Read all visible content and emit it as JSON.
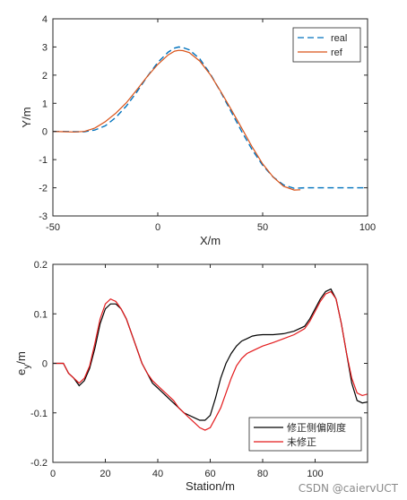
{
  "watermark": "CSDN @caiervUCT",
  "chart_data": [
    {
      "type": "line",
      "xlabel": "X/m",
      "ylabel": "Y/m",
      "xlim": [
        -50,
        100
      ],
      "ylim": [
        -3,
        4
      ],
      "xticks": [
        -50,
        0,
        50,
        100
      ],
      "yticks": [
        -3,
        -2,
        -1,
        0,
        1,
        2,
        3,
        4
      ],
      "grid": false,
      "legend_position": "top-right",
      "series": [
        {
          "name": "real",
          "color": "#0072BD",
          "dash": "dashed",
          "x": [
            -50,
            -45,
            -40,
            -35,
            -30,
            -25,
            -20,
            -15,
            -10,
            -5,
            0,
            5,
            8,
            10,
            12,
            15,
            20,
            25,
            30,
            35,
            40,
            45,
            50,
            55,
            60,
            65,
            70,
            75,
            80,
            90,
            100
          ],
          "y": [
            0.0,
            0.0,
            -0.01,
            -0.01,
            0.05,
            0.2,
            0.5,
            0.9,
            1.4,
            1.95,
            2.45,
            2.82,
            2.96,
            3.0,
            2.98,
            2.9,
            2.58,
            2.05,
            1.4,
            0.7,
            0.0,
            -0.65,
            -1.2,
            -1.62,
            -1.9,
            -2.02,
            -2.0,
            -2.0,
            -2.0,
            -2.0,
            -2.0
          ]
        },
        {
          "name": "ref",
          "color": "#D95319",
          "dash": "solid",
          "x": [
            -50,
            -45,
            -40,
            -35,
            -30,
            -25,
            -20,
            -15,
            -10,
            -5,
            0,
            5,
            8,
            10,
            12,
            15,
            20,
            25,
            30,
            35,
            40,
            45,
            50,
            55,
            60,
            65,
            68
          ],
          "y": [
            0.0,
            -0.01,
            -0.02,
            0.0,
            0.12,
            0.35,
            0.65,
            1.02,
            1.48,
            1.95,
            2.38,
            2.72,
            2.85,
            2.88,
            2.87,
            2.8,
            2.5,
            2.02,
            1.42,
            0.78,
            0.12,
            -0.55,
            -1.15,
            -1.62,
            -1.95,
            -2.08,
            -2.07
          ]
        }
      ]
    },
    {
      "type": "line",
      "xlabel": "Station/m",
      "ylabel": "e_y/m",
      "ylabel_main": "e",
      "ylabel_sub": "y",
      "ylabel_rest": "/m",
      "xlim": [
        0,
        120
      ],
      "ylim": [
        -0.2,
        0.2
      ],
      "xticks": [
        0,
        20,
        40,
        60,
        80,
        100
      ],
      "yticks": [
        -0.2,
        -0.1,
        0,
        0.1,
        0.2
      ],
      "ytick_labels": [
        "-0.2",
        "-0.1",
        "0",
        "0.1",
        "0.2"
      ],
      "grid": false,
      "legend_position": "bottom-right",
      "series": [
        {
          "name": "修正侧偏刚度",
          "color": "#000000",
          "x": [
            0,
            4,
            6,
            8,
            10,
            12,
            14,
            16,
            18,
            20,
            22,
            24,
            26,
            28,
            30,
            32,
            34,
            36,
            38,
            40,
            42,
            44,
            46,
            48,
            50,
            52,
            54,
            56,
            58,
            60,
            62,
            64,
            66,
            68,
            70,
            72,
            74,
            76,
            78,
            80,
            84,
            88,
            92,
            96,
            98,
            100,
            102,
            104,
            106,
            108,
            110,
            112,
            114,
            116,
            118,
            120
          ],
          "y": [
            0.0,
            0.0,
            -0.02,
            -0.03,
            -0.045,
            -0.035,
            -0.01,
            0.03,
            0.08,
            0.11,
            0.12,
            0.12,
            0.11,
            0.09,
            0.06,
            0.03,
            0.0,
            -0.02,
            -0.04,
            -0.05,
            -0.06,
            -0.07,
            -0.08,
            -0.09,
            -0.1,
            -0.105,
            -0.11,
            -0.115,
            -0.115,
            -0.105,
            -0.07,
            -0.03,
            0.0,
            0.02,
            0.035,
            0.045,
            0.05,
            0.055,
            0.057,
            0.058,
            0.058,
            0.06,
            0.065,
            0.075,
            0.09,
            0.11,
            0.13,
            0.145,
            0.15,
            0.13,
            0.08,
            0.02,
            -0.04,
            -0.075,
            -0.08,
            -0.078
          ]
        },
        {
          "name": "未修正",
          "color": "#E31A1C",
          "x": [
            0,
            4,
            6,
            8,
            10,
            12,
            14,
            16,
            18,
            20,
            22,
            24,
            26,
            28,
            30,
            32,
            34,
            36,
            38,
            40,
            42,
            44,
            46,
            48,
            50,
            52,
            54,
            56,
            58,
            60,
            62,
            64,
            66,
            68,
            70,
            72,
            74,
            76,
            78,
            80,
            84,
            88,
            92,
            96,
            98,
            100,
            102,
            104,
            106,
            108,
            110,
            112,
            114,
            116,
            118,
            120
          ],
          "y": [
            0.0,
            0.0,
            -0.02,
            -0.03,
            -0.04,
            -0.03,
            -0.005,
            0.04,
            0.09,
            0.12,
            0.13,
            0.125,
            0.11,
            0.09,
            0.06,
            0.03,
            0.0,
            -0.02,
            -0.035,
            -0.045,
            -0.055,
            -0.065,
            -0.075,
            -0.09,
            -0.1,
            -0.11,
            -0.12,
            -0.13,
            -0.135,
            -0.13,
            -0.11,
            -0.09,
            -0.06,
            -0.03,
            -0.005,
            0.01,
            0.02,
            0.025,
            0.03,
            0.035,
            0.042,
            0.05,
            0.058,
            0.07,
            0.085,
            0.105,
            0.125,
            0.14,
            0.145,
            0.13,
            0.08,
            0.02,
            -0.03,
            -0.06,
            -0.065,
            -0.062
          ]
        }
      ]
    }
  ]
}
